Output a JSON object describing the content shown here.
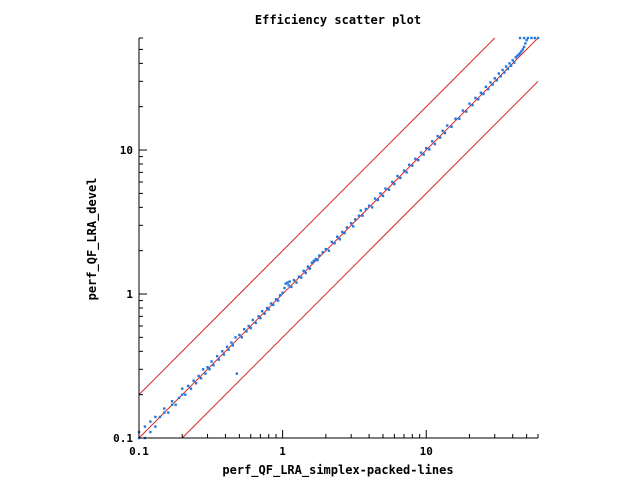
{
  "chart_data": {
    "type": "scatter",
    "title": "Efficiency scatter plot",
    "xlabel": "perf_QF_LRA_simplex-packed-lines",
    "ylabel": "perf_QF_LRA_devel",
    "xscale": "log",
    "yscale": "log",
    "xlim": [
      0.1,
      60
    ],
    "ylim": [
      0.1,
      60
    ],
    "xticks": [
      {
        "value": 0.1,
        "label": "0.1"
      },
      {
        "value": 1,
        "label": "1"
      },
      {
        "value": 10,
        "label": "10"
      }
    ],
    "yticks": [
      {
        "value": 0.1,
        "label": "0.1"
      },
      {
        "value": 1,
        "label": "1"
      },
      {
        "value": 10,
        "label": "10"
      }
    ],
    "grid": false,
    "reference_lines": [
      {
        "name": "y=x",
        "factor": 1
      },
      {
        "name": "y=2x",
        "factor": 2
      },
      {
        "name": "y=x/2",
        "factor": 0.5
      }
    ],
    "colors": {
      "points": "#1f77e0",
      "reference_lines": "#d62728",
      "axes": "#000000"
    },
    "points": [
      [
        0.1,
        0.1
      ],
      [
        0.1,
        0.11
      ],
      [
        0.11,
        0.1
      ],
      [
        0.11,
        0.12
      ],
      [
        0.12,
        0.11
      ],
      [
        0.12,
        0.13
      ],
      [
        0.13,
        0.12
      ],
      [
        0.13,
        0.14
      ],
      [
        0.14,
        0.14
      ],
      [
        0.15,
        0.15
      ],
      [
        0.15,
        0.16
      ],
      [
        0.16,
        0.15
      ],
      [
        0.17,
        0.17
      ],
      [
        0.17,
        0.18
      ],
      [
        0.18,
        0.17
      ],
      [
        0.19,
        0.19
      ],
      [
        0.2,
        0.2
      ],
      [
        0.2,
        0.22
      ],
      [
        0.21,
        0.2
      ],
      [
        0.22,
        0.23
      ],
      [
        0.23,
        0.22
      ],
      [
        0.24,
        0.25
      ],
      [
        0.25,
        0.24
      ],
      [
        0.26,
        0.27
      ],
      [
        0.27,
        0.26
      ],
      [
        0.28,
        0.3
      ],
      [
        0.29,
        0.28
      ],
      [
        0.3,
        0.31
      ],
      [
        0.31,
        0.3
      ],
      [
        0.32,
        0.34
      ],
      [
        0.33,
        0.32
      ],
      [
        0.35,
        0.37
      ],
      [
        0.36,
        0.35
      ],
      [
        0.38,
        0.4
      ],
      [
        0.39,
        0.38
      ],
      [
        0.41,
        0.43
      ],
      [
        0.42,
        0.41
      ],
      [
        0.44,
        0.46
      ],
      [
        0.45,
        0.44
      ],
      [
        0.47,
        0.5
      ],
      [
        0.48,
        0.28
      ],
      [
        0.5,
        0.52
      ],
      [
        0.52,
        0.5
      ],
      [
        0.54,
        0.57
      ],
      [
        0.56,
        0.55
      ],
      [
        0.58,
        0.6
      ],
      [
        0.6,
        0.58
      ],
      [
        0.62,
        0.66
      ],
      [
        0.65,
        0.63
      ],
      [
        0.68,
        0.7
      ],
      [
        0.7,
        0.68
      ],
      [
        0.72,
        0.76
      ],
      [
        0.75,
        0.73
      ],
      [
        0.78,
        0.8
      ],
      [
        0.8,
        0.78
      ],
      [
        0.83,
        0.86
      ],
      [
        0.86,
        0.84
      ],
      [
        0.9,
        0.92
      ],
      [
        0.93,
        0.9
      ],
      [
        0.96,
        0.98
      ],
      [
        1.0,
        1.02
      ],
      [
        1.03,
        1.1
      ],
      [
        1.05,
        1.18
      ],
      [
        1.08,
        1.2
      ],
      [
        1.1,
        1.15
      ],
      [
        1.12,
        1.22
      ],
      [
        1.15,
        1.12
      ],
      [
        1.2,
        1.25
      ],
      [
        1.25,
        1.2
      ],
      [
        1.3,
        1.32
      ],
      [
        1.35,
        1.3
      ],
      [
        1.4,
        1.45
      ],
      [
        1.45,
        1.4
      ],
      [
        1.5,
        1.55
      ],
      [
        1.55,
        1.5
      ],
      [
        1.6,
        1.65
      ],
      [
        1.65,
        1.7
      ],
      [
        1.7,
        1.75
      ],
      [
        1.75,
        1.72
      ],
      [
        1.8,
        1.85
      ],
      [
        1.9,
        1.95
      ],
      [
        2.0,
        2.05
      ],
      [
        2.1,
        2.0
      ],
      [
        2.2,
        2.3
      ],
      [
        2.3,
        2.25
      ],
      [
        2.4,
        2.5
      ],
      [
        2.5,
        2.4
      ],
      [
        2.6,
        2.7
      ],
      [
        2.7,
        2.65
      ],
      [
        2.8,
        2.9
      ],
      [
        3.0,
        3.1
      ],
      [
        3.1,
        2.95
      ],
      [
        3.2,
        3.3
      ],
      [
        3.4,
        3.5
      ],
      [
        3.5,
        3.8
      ],
      [
        3.6,
        3.5
      ],
      [
        3.8,
        3.9
      ],
      [
        4.0,
        4.1
      ],
      [
        4.2,
        4.0
      ],
      [
        4.4,
        4.6
      ],
      [
        4.6,
        4.5
      ],
      [
        4.8,
        5.0
      ],
      [
        5.0,
        4.8
      ],
      [
        5.2,
        5.4
      ],
      [
        5.5,
        5.3
      ],
      [
        5.8,
        6.0
      ],
      [
        6.0,
        5.8
      ],
      [
        6.3,
        6.6
      ],
      [
        6.6,
        6.4
      ],
      [
        7.0,
        7.2
      ],
      [
        7.3,
        7.0
      ],
      [
        7.6,
        7.9
      ],
      [
        8.0,
        7.8
      ],
      [
        8.4,
        8.7
      ],
      [
        8.8,
        8.5
      ],
      [
        9.2,
        9.6
      ],
      [
        9.6,
        9.3
      ],
      [
        10.0,
        10.3
      ],
      [
        10.5,
        10.1
      ],
      [
        11.0,
        11.5
      ],
      [
        11.5,
        11.0
      ],
      [
        12.0,
        12.5
      ],
      [
        12.5,
        12.2
      ],
      [
        13.0,
        13.6
      ],
      [
        13.5,
        13.1
      ],
      [
        14.0,
        14.8
      ],
      [
        15.0,
        14.5
      ],
      [
        16.0,
        16.5
      ],
      [
        17.0,
        16.5
      ],
      [
        18.0,
        18.8
      ],
      [
        19.0,
        18.5
      ],
      [
        20.0,
        21.0
      ],
      [
        21.0,
        20.5
      ],
      [
        22.0,
        23.0
      ],
      [
        23.0,
        22.5
      ],
      [
        24.0,
        25.0
      ],
      [
        25.0,
        24.5
      ],
      [
        26.0,
        27.5
      ],
      [
        27.0,
        26.5
      ],
      [
        28.0,
        29.5
      ],
      [
        29.0,
        28.5
      ],
      [
        30.0,
        31.5
      ],
      [
        31.0,
        30.5
      ],
      [
        32.0,
        34.0
      ],
      [
        33.0,
        32.5
      ],
      [
        34.0,
        36.0
      ],
      [
        35.0,
        34.5
      ],
      [
        36.0,
        38.0
      ],
      [
        37.0,
        36.5
      ],
      [
        38.0,
        40.0
      ],
      [
        39.0,
        38.5
      ],
      [
        40.0,
        42.0
      ],
      [
        41.0,
        40.5
      ],
      [
        42.0,
        44.0
      ],
      [
        43.0,
        45.0
      ],
      [
        44.0,
        46.0
      ],
      [
        45.0,
        47.0
      ],
      [
        46.0,
        48.5
      ],
      [
        47.0,
        50.0
      ],
      [
        48.0,
        52.0
      ],
      [
        49.0,
        55.0
      ],
      [
        50.0,
        58.0
      ],
      [
        45.0,
        60.0
      ],
      [
        48.0,
        60.0
      ],
      [
        51.0,
        60.0
      ],
      [
        54.0,
        60.0
      ],
      [
        57.0,
        60.0
      ],
      [
        60.0,
        60.0
      ]
    ]
  }
}
